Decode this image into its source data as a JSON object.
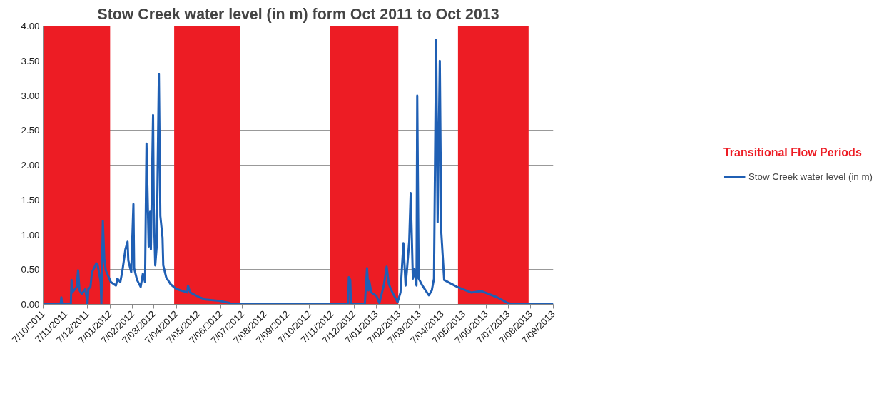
{
  "chart_data": {
    "type": "line",
    "title": "Stow Creek water level (in m) form Oct 2011 to Oct 2013",
    "annotations": [
      "Transitional Flow Periods"
    ],
    "bands": [
      {
        "axis": "x",
        "from": "2011-10-07",
        "to": "2012-01-07",
        "label": null,
        "color": "#ed1c24"
      },
      {
        "axis": "x",
        "from": "2012-04-04",
        "to": "2012-07-04",
        "label": null,
        "color": "#ed1c24"
      },
      {
        "axis": "x",
        "from": "2012-11-04",
        "to": "2013-02-06",
        "label": null,
        "color": "#ed1c24"
      },
      {
        "axis": "x",
        "from": "2013-04-29",
        "to": "2013-08-04",
        "label": null,
        "color": "#ed1c24"
      }
    ],
    "x": [
      "2011-10-07",
      "2011-10-31",
      "2011-11-01",
      "2011-11-02",
      "2011-11-08",
      "2011-11-14",
      "2011-11-15",
      "2011-11-16",
      "2011-11-22",
      "2011-11-24",
      "2011-11-26",
      "2011-11-29",
      "2011-12-04",
      "2011-12-07",
      "2011-12-08",
      "2011-12-11",
      "2011-12-13",
      "2011-12-16",
      "2011-12-19",
      "2011-12-21",
      "2011-12-25",
      "2011-12-26",
      "2011-12-28",
      "2011-12-30",
      "2012-01-01",
      "2012-01-08",
      "2012-01-15",
      "2012-01-17",
      "2012-01-21",
      "2012-01-24",
      "2012-01-28",
      "2012-01-31",
      "2012-02-01",
      "2012-02-05",
      "2012-02-08",
      "2012-02-09",
      "2012-02-13",
      "2012-02-18",
      "2012-02-21",
      "2012-02-24",
      "2012-02-26",
      "2012-02-27",
      "2012-02-29",
      "2012-03-02",
      "2012-03-03",
      "2012-03-06",
      "2012-03-07",
      "2012-03-09",
      "2012-03-11",
      "2012-03-14",
      "2012-03-16",
      "2012-03-19",
      "2012-03-20",
      "2012-03-24",
      "2012-03-30",
      "2012-04-07",
      "2012-04-22",
      "2012-04-23",
      "2012-04-26",
      "2012-05-09",
      "2012-05-17",
      "2012-06-05",
      "2012-06-19",
      "2012-06-22",
      "2012-11-29",
      "2012-11-30",
      "2012-12-02",
      "2012-12-03",
      "2012-12-22",
      "2012-12-25",
      "2012-12-27",
      "2012-12-28",
      "2012-12-31",
      "2013-01-07",
      "2013-01-11",
      "2013-01-17",
      "2013-01-21",
      "2013-01-24",
      "2013-01-28",
      "2013-02-05",
      "2013-02-09",
      "2013-02-13",
      "2013-02-16",
      "2013-02-18",
      "2013-02-21",
      "2013-02-23",
      "2013-02-26",
      "2013-02-28",
      "2013-03-03",
      "2013-03-04",
      "2013-03-06",
      "2013-03-11",
      "2013-03-20",
      "2013-03-24",
      "2013-03-27",
      "2013-03-30",
      "2013-04-01",
      "2013-04-04",
      "2013-04-06",
      "2013-04-10",
      "2013-04-28",
      "2013-05-17",
      "2013-05-31",
      "2013-06-22",
      "2013-07-06",
      "2013-07-14",
      "2013-09-07"
    ],
    "series": [
      {
        "name": "Stow Creek water level (in m)",
        "color": "#1f5fb4",
        "values": [
          0,
          0,
          0.1,
          0,
          0,
          0,
          0.35,
          0.17,
          0.25,
          0.49,
          0.2,
          0.15,
          0.22,
          0,
          0.22,
          0.25,
          0.46,
          0.52,
          0.59,
          0.56,
          0.32,
          0,
          1.2,
          0.66,
          0.49,
          0.32,
          0.27,
          0.37,
          0.32,
          0.49,
          0.79,
          0.9,
          0.63,
          0.46,
          1.44,
          0.52,
          0.35,
          0.25,
          0.44,
          0.32,
          2.31,
          1.81,
          0.83,
          1.33,
          0.79,
          2.72,
          1.37,
          0.56,
          0.83,
          3.31,
          1.27,
          0.96,
          0.56,
          0.39,
          0.29,
          0.22,
          0.17,
          0.27,
          0.17,
          0.1,
          0.07,
          0.05,
          0.02,
          0,
          0,
          0.39,
          0.35,
          0,
          0,
          0.52,
          0.2,
          0.34,
          0.17,
          0.12,
          0.02,
          0.27,
          0.54,
          0.29,
          0.19,
          0.03,
          0.17,
          0.88,
          0.27,
          0.51,
          0.91,
          1.6,
          0.37,
          0.51,
          0.27,
          3.0,
          0.37,
          0.27,
          0.13,
          0.2,
          0.37,
          3.8,
          1.18,
          3.5,
          1.04,
          0.35,
          0.25,
          0.17,
          0.19,
          0.1,
          0.02,
          0,
          0
        ]
      }
    ],
    "xlim": [
      "2011-10-07",
      "2013-09-07"
    ],
    "xticks": [
      {
        "value": "2011-10-07",
        "label": "7/10/2011"
      },
      {
        "value": "2011-11-07",
        "label": "7/11/2011"
      },
      {
        "value": "2011-12-07",
        "label": "7/12/2011"
      },
      {
        "value": "2012-01-07",
        "label": "7/01/2012"
      },
      {
        "value": "2012-02-07",
        "label": "7/02/2012"
      },
      {
        "value": "2012-03-07",
        "label": "7/03/2012"
      },
      {
        "value": "2012-04-07",
        "label": "7/04/2012"
      },
      {
        "value": "2012-05-07",
        "label": "7/05/2012"
      },
      {
        "value": "2012-06-07",
        "label": "7/06/2012"
      },
      {
        "value": "2012-07-07",
        "label": "7/07/2012"
      },
      {
        "value": "2012-08-07",
        "label": "7/08/2012"
      },
      {
        "value": "2012-09-07",
        "label": "7/09/2012"
      },
      {
        "value": "2012-10-07",
        "label": "7/10/2012"
      },
      {
        "value": "2012-11-07",
        "label": "7/11/2012"
      },
      {
        "value": "2012-12-07",
        "label": "7/12/2012"
      },
      {
        "value": "2013-01-07",
        "label": "7/01/2013"
      },
      {
        "value": "2013-02-07",
        "label": "7/02/2013"
      },
      {
        "value": "2013-03-07",
        "label": "7/03/2013"
      },
      {
        "value": "2013-04-07",
        "label": "7/04/2013"
      },
      {
        "value": "2013-05-07",
        "label": "7/05/2013"
      },
      {
        "value": "2013-06-07",
        "label": "7/06/2013"
      },
      {
        "value": "2013-07-07",
        "label": "7/07/2013"
      },
      {
        "value": "2013-08-07",
        "label": "7/08/2013"
      },
      {
        "value": "2013-09-07",
        "label": "7/09/2013"
      }
    ],
    "ylim": [
      0,
      4
    ],
    "yticks": [
      {
        "value": 0,
        "label": "0.00"
      },
      {
        "value": 0.5,
        "label": "0.50"
      },
      {
        "value": 1,
        "label": "1.00"
      },
      {
        "value": 1.5,
        "label": "1.50"
      },
      {
        "value": 2,
        "label": "2.00"
      },
      {
        "value": 2.5,
        "label": "2.50"
      },
      {
        "value": 3,
        "label": "3.00"
      },
      {
        "value": 3.5,
        "label": "3.50"
      },
      {
        "value": 4,
        "label": "4.00"
      }
    ],
    "grid": "y",
    "legend": "right",
    "marker": "none",
    "line_style": "solid"
  }
}
